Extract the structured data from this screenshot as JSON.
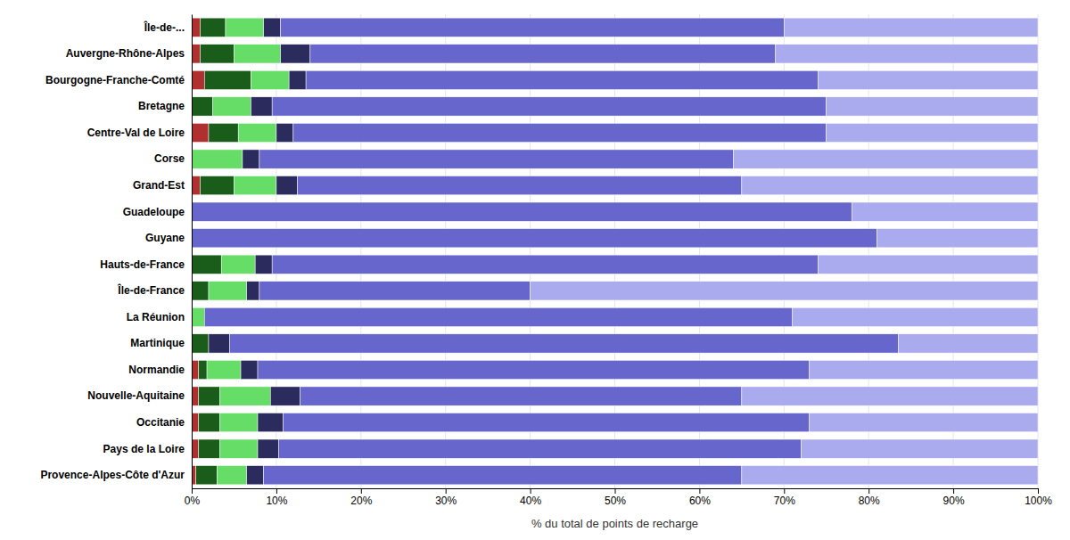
{
  "chart_data": {
    "type": "bar",
    "orientation": "horizontal",
    "stacked": true,
    "grid": true,
    "x_label": "% du total de points de recharge",
    "xlim": [
      0,
      100
    ],
    "xticks": [
      {
        "value": 0,
        "label": "0%"
      },
      {
        "value": 10,
        "label": "10%"
      },
      {
        "value": 20,
        "label": "20%"
      },
      {
        "value": 30,
        "label": "30%"
      },
      {
        "value": 40,
        "label": "40%"
      },
      {
        "value": 50,
        "label": "50%"
      },
      {
        "value": 60,
        "label": "60%"
      },
      {
        "value": 70,
        "label": "70%"
      },
      {
        "value": 80,
        "label": "80%"
      },
      {
        "value": 90,
        "label": "90%"
      },
      {
        "value": 100,
        "label": "100%"
      }
    ],
    "categories": [
      "Île-de-...",
      "Auvergne-Rhône-Alpes",
      "Bourgogne-Franche-Comté",
      "Bretagne",
      "Centre-Val de Loire",
      "Corse",
      "Grand-Est",
      "Guadeloupe",
      "Guyane",
      "Hauts-de-France",
      "Île-de-France",
      "La Réunion",
      "Martinique",
      "Normandie",
      "Nouvelle-Aquitaine",
      "Occitanie",
      "Pays de la Loire",
      "Provence-Alpes-Côte d'Azur"
    ],
    "series": [
      {
        "color": "#b03030",
        "values": [
          1.0,
          1.0,
          1.5,
          0.0,
          2.0,
          0.0,
          1.0,
          0.0,
          0.0,
          0.0,
          0.0,
          0.0,
          0.0,
          0.8,
          0.8,
          0.8,
          0.8,
          0.5
        ]
      },
      {
        "color": "#1a5c1a",
        "values": [
          3.0,
          4.0,
          5.5,
          2.5,
          3.5,
          0.0,
          4.0,
          0.0,
          0.0,
          3.5,
          2.0,
          0.0,
          2.0,
          1.0,
          2.5,
          2.5,
          2.5,
          2.5
        ]
      },
      {
        "color": "#66dd66",
        "values": [
          4.5,
          5.5,
          4.5,
          4.5,
          4.5,
          6.0,
          5.0,
          0.0,
          0.0,
          4.0,
          4.5,
          1.5,
          0.0,
          4.0,
          6.0,
          4.5,
          4.5,
          3.5
        ]
      },
      {
        "color": "#2b2b5e",
        "values": [
          2.0,
          3.5,
          2.0,
          2.5,
          2.0,
          2.0,
          2.5,
          0.0,
          0.0,
          2.0,
          1.5,
          0.0,
          2.5,
          2.0,
          3.5,
          3.0,
          2.5,
          2.0
        ]
      },
      {
        "color": "#6666cc",
        "values": [
          59.5,
          55.0,
          60.5,
          65.5,
          63.0,
          56.0,
          52.5,
          78.0,
          81.0,
          64.5,
          32.0,
          69.5,
          79.0,
          65.2,
          52.2,
          62.2,
          61.7,
          56.5
        ]
      },
      {
        "color": "#aaaaee",
        "values": [
          30.0,
          31.0,
          26.0,
          25.0,
          25.0,
          36.0,
          35.0,
          22.0,
          19.0,
          26.0,
          60.0,
          29.0,
          16.5,
          27.0,
          35.0,
          27.0,
          28.0,
          35.0
        ]
      }
    ]
  }
}
